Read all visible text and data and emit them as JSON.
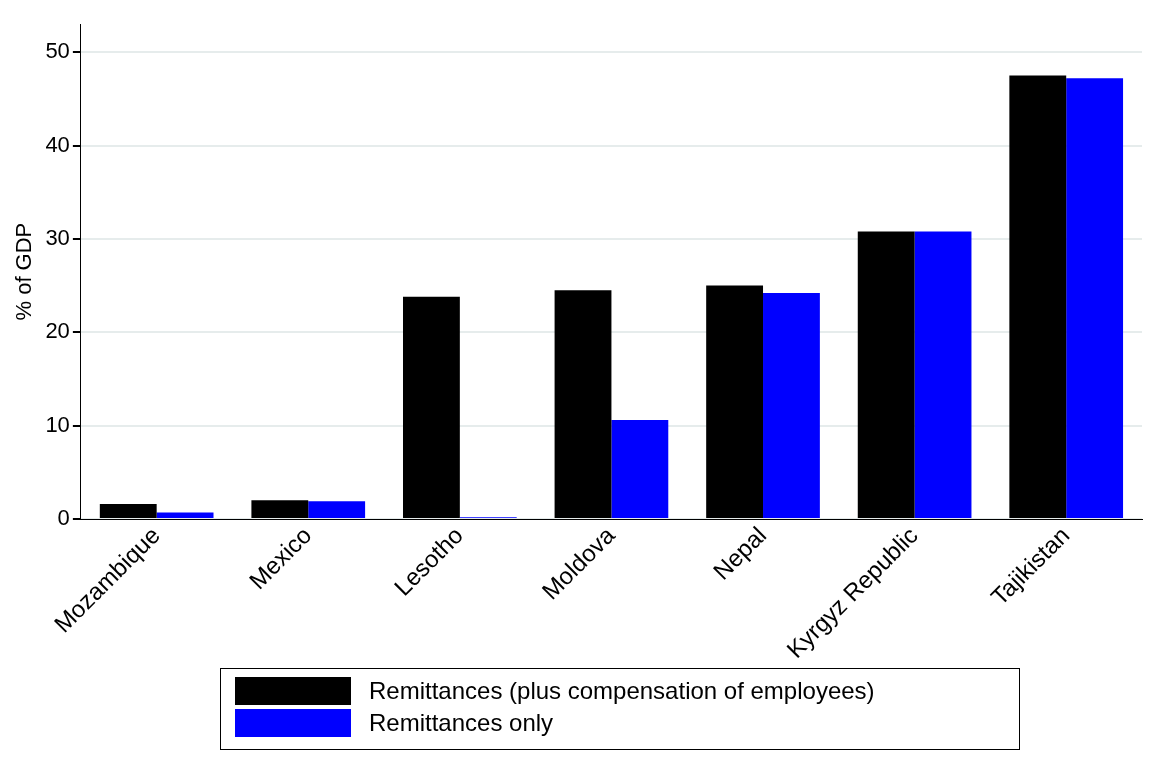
{
  "chart_data": {
    "type": "bar",
    "ylabel": "% of GDP",
    "categories": [
      "Mozambique",
      "Mexico",
      "Lesotho",
      "Moldova",
      "Nepal",
      "Kyrgyz Republic",
      "Tajikistan"
    ],
    "series": [
      {
        "name": "Remittances (plus compensation of employees)",
        "color": "#000000",
        "values": [
          1.6,
          2.0,
          23.8,
          24.5,
          25.0,
          30.8,
          47.5
        ]
      },
      {
        "name": "Remittances only",
        "color": "#0000ff",
        "values": [
          0.7,
          1.9,
          0.2,
          10.6,
          24.2,
          30.8,
          47.2
        ]
      }
    ],
    "ylim": [
      0,
      53
    ],
    "yticks": [
      0,
      10,
      20,
      30,
      40,
      50
    ],
    "grid": "y",
    "legend": "bottom"
  }
}
